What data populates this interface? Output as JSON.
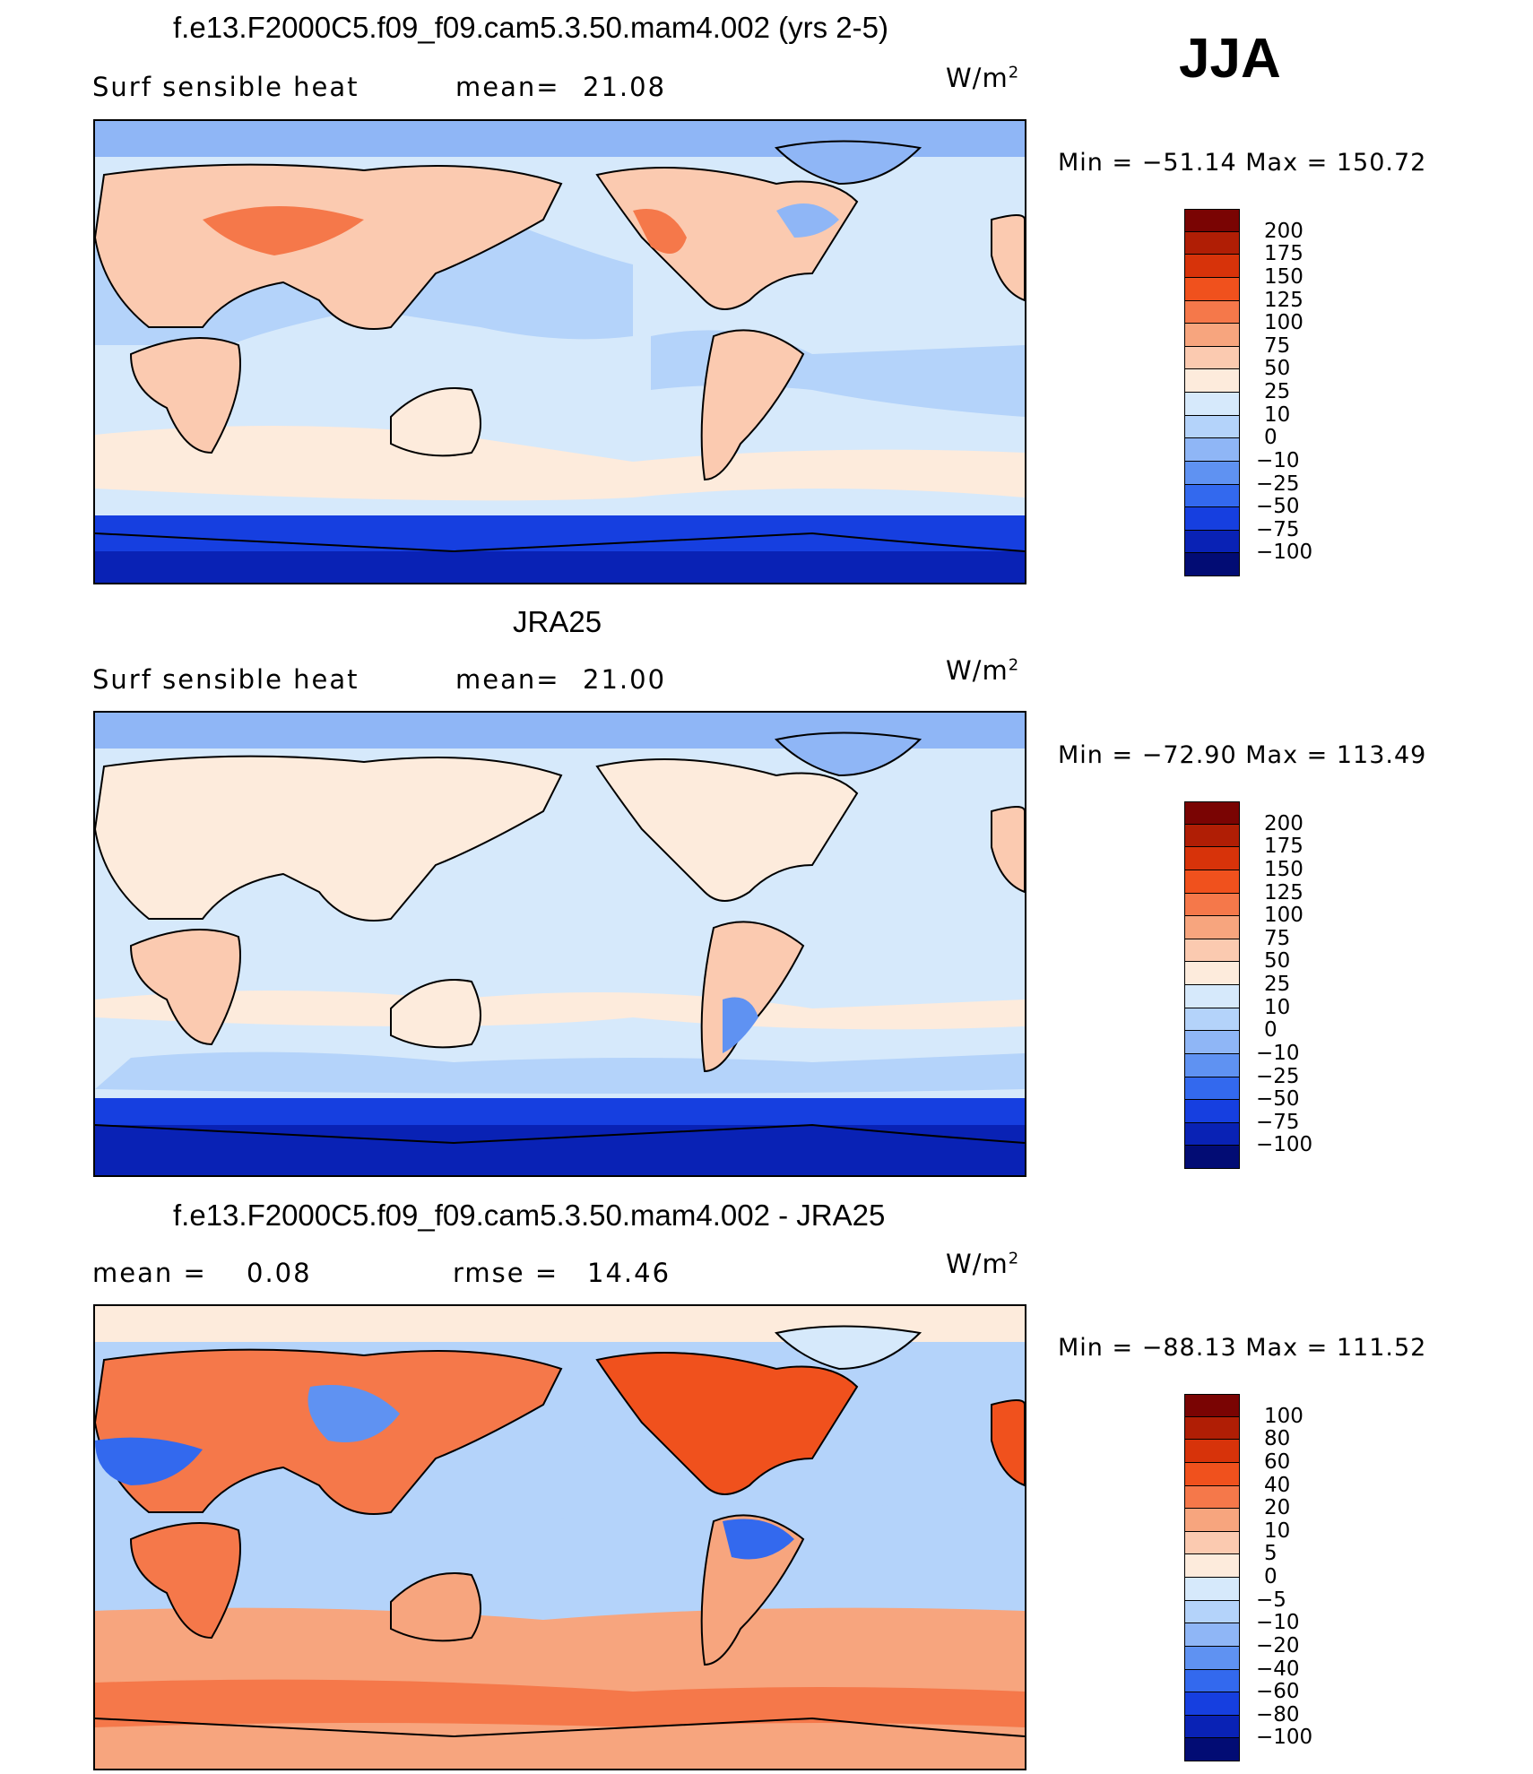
{
  "season": "JJA",
  "panels": [
    {
      "title": "f.e13.F2000C5.f09_f09.cam5.3.50.mam4.002 (yrs 2-5)",
      "left_label": "Surf sensible heat",
      "stat_label": "mean=",
      "stat_value": "21.08",
      "units_base": "W/m",
      "units_exp": "2",
      "min_label": "Min",
      "min_value": "−51.14",
      "max_label": "Max",
      "max_value": "150.72",
      "colorbar_levels": [
        "200",
        "175",
        "150",
        "125",
        "100",
        "75",
        "50",
        "25",
        "10",
        "0",
        "−10",
        "−25",
        "−50",
        "−75",
        "−100"
      ]
    },
    {
      "title": "JRA25",
      "left_label": "Surf sensible heat",
      "stat_label": "mean=",
      "stat_value": "21.00",
      "units_base": "W/m",
      "units_exp": "2",
      "min_label": "Min",
      "min_value": "−72.90",
      "max_label": "Max",
      "max_value": "113.49",
      "colorbar_levels": [
        "200",
        "175",
        "150",
        "125",
        "100",
        "75",
        "50",
        "25",
        "10",
        "0",
        "−10",
        "−25",
        "−50",
        "−75",
        "−100"
      ]
    },
    {
      "title": "f.e13.F2000C5.f09_f09.cam5.3.50.mam4.002 - JRA25",
      "left_label": "mean =",
      "left_value": "0.08",
      "stat_label": "rmse =",
      "stat_value": "14.46",
      "units_base": "W/m",
      "units_exp": "2",
      "min_label": "Min",
      "min_value": "−88.13",
      "max_label": "Max",
      "max_value": "111.52",
      "colorbar_levels": [
        "100",
        "80",
        "60",
        "40",
        "20",
        "10",
        "5",
        "0",
        "−5",
        "−10",
        "−20",
        "−40",
        "−60",
        "−80",
        "−100"
      ]
    }
  ],
  "colorbar_colors": [
    "#7a0403",
    "#b01e05",
    "#d7330a",
    "#f0511d",
    "#f5784a",
    "#f7a57e",
    "#fbcab0",
    "#fdebdc",
    "#d6e9fb",
    "#b4d3fa",
    "#8fb6f6",
    "#5f92f2",
    "#3369ee",
    "#163fe0",
    "#0922b5",
    "#020c74"
  ]
}
